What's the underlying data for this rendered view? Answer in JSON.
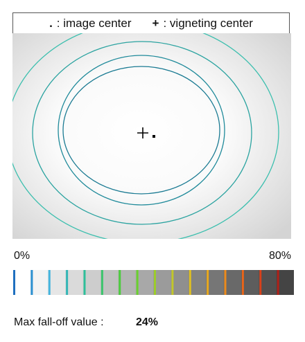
{
  "legend": {
    "items": [
      {
        "symbol": ".",
        "label": ": image center"
      },
      {
        "symbol": "+",
        "label": ": vigneting center"
      }
    ]
  },
  "scale": {
    "min_label": "0%",
    "max_label": "80%"
  },
  "result": {
    "label": "Max fall-off value :",
    "value": "24%"
  }
}
